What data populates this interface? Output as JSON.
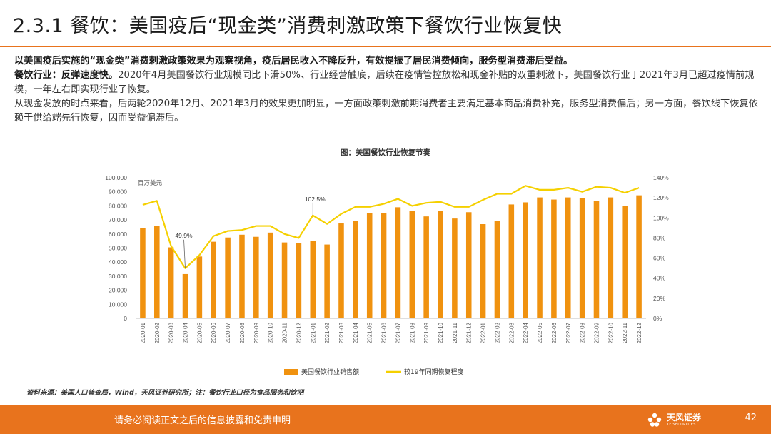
{
  "title": "2.3.1 餐饮：美国疫后“现金类”消费刺激政策下餐饮行业恢复快",
  "paragraphs": {
    "p1": "以美国疫后实施的“现金类”消费刺激政策效果为观察视角，疫后居民收入不降反升，有效提振了居民消费倾向，服务型消费滞后受益。",
    "p2_lead": "餐饮行业：反弹速度快。",
    "p2_rest": "2020年4月美国餐饮行业规模同比下滑50%、行业经营触底，后续在疫情管控放松和现金补贴的双重刺激下，美国餐饮行业于2021年3月已超过疫情前规模，一年左右即实现行业了恢复。",
    "p3": "从现金发放的时点来看，后两轮2020年12月、2021年3月的效果更加明显，一方面政策刺激前期消费者主要满足基本商品消费补充，服务型消费偏后；另一方面，餐饮线下恢复依赖于供给端先行恢复，因而受益偏滞后。"
  },
  "chart_title": "图：美国餐饮行业恢复节奏",
  "chart_data": {
    "type": "bar+line",
    "title": "图：美国餐饮行业恢复节奏",
    "unit_label": "百万美元",
    "categories": [
      "2020-01",
      "2020-02",
      "2020-03",
      "2020-04",
      "2020-05",
      "2020-06",
      "2020-07",
      "2020-08",
      "2020-09",
      "2020-10",
      "2020-11",
      "2020-12",
      "2021-01",
      "2021-02",
      "2021-03",
      "2021-04",
      "2021-05",
      "2021-06",
      "2021-07",
      "2021-08",
      "2021-09",
      "2021-10",
      "2021-11",
      "2021-12",
      "2022-01",
      "2022-02",
      "2022-03",
      "2022-04",
      "2022-05",
      "2022-06",
      "2022-07",
      "2022-08",
      "2022-09",
      "2022-10",
      "2022-11",
      "2022-12"
    ],
    "series": [
      {
        "name": "美国餐饮行业销售额",
        "type": "bar",
        "axis": "left",
        "color": "#f0920f",
        "values": [
          64000,
          65500,
          50500,
          31500,
          44000,
          54500,
          57500,
          59500,
          58000,
          61000,
          54000,
          53500,
          55000,
          52500,
          67500,
          69500,
          75000,
          75000,
          79000,
          76500,
          72500,
          76500,
          71000,
          75500,
          67000,
          69500,
          81000,
          82500,
          86000,
          84500,
          86000,
          85500,
          83500,
          86000,
          80000,
          87500
        ]
      },
      {
        "name": "较19年同期恢复程度",
        "type": "line",
        "axis": "right",
        "color": "#f5d000",
        "values": [
          113,
          117,
          72,
          49.9,
          63,
          82,
          87,
          88,
          92,
          92,
          84,
          80,
          102.5,
          94,
          104,
          111,
          111,
          114,
          119,
          112,
          115,
          116,
          111,
          111,
          118,
          124,
          124,
          132,
          128,
          128,
          130,
          126,
          131,
          130,
          125,
          130
        ]
      }
    ],
    "left_axis": {
      "min": 0,
      "max": 100000,
      "ticks": [
        "0",
        "10,000",
        "20,000",
        "30,000",
        "40,000",
        "50,000",
        "60,000",
        "70,000",
        "80,000",
        "90,000",
        "100,000"
      ]
    },
    "right_axis": {
      "min": 0,
      "max": 140,
      "ticks": [
        "0%",
        "20%",
        "40%",
        "60%",
        "80%",
        "100%",
        "120%",
        "140%"
      ]
    },
    "annotations": [
      {
        "label": "49.9%",
        "category": "2020-04",
        "value": 49.9
      },
      {
        "label": "102.5%",
        "category": "2021-01",
        "value": 102.5
      }
    ]
  },
  "legend": {
    "bar_label": "美国餐饮行业销售额",
    "line_label": "较19年同期恢复程度"
  },
  "source": "资料来源：美国人口普查局，Wind，天风证券研究所；注：餐饮行业口径为食品服务和饮吧",
  "footer": {
    "disclaimer": "请务必阅读正文之后的信息披露和免责申明",
    "brand": "天风证券",
    "brand_en": "TF SECURITIES",
    "page_number": "42"
  },
  "colors": {
    "accent": "#e8731d",
    "bar": "#f0920f",
    "line": "#f5d000"
  }
}
